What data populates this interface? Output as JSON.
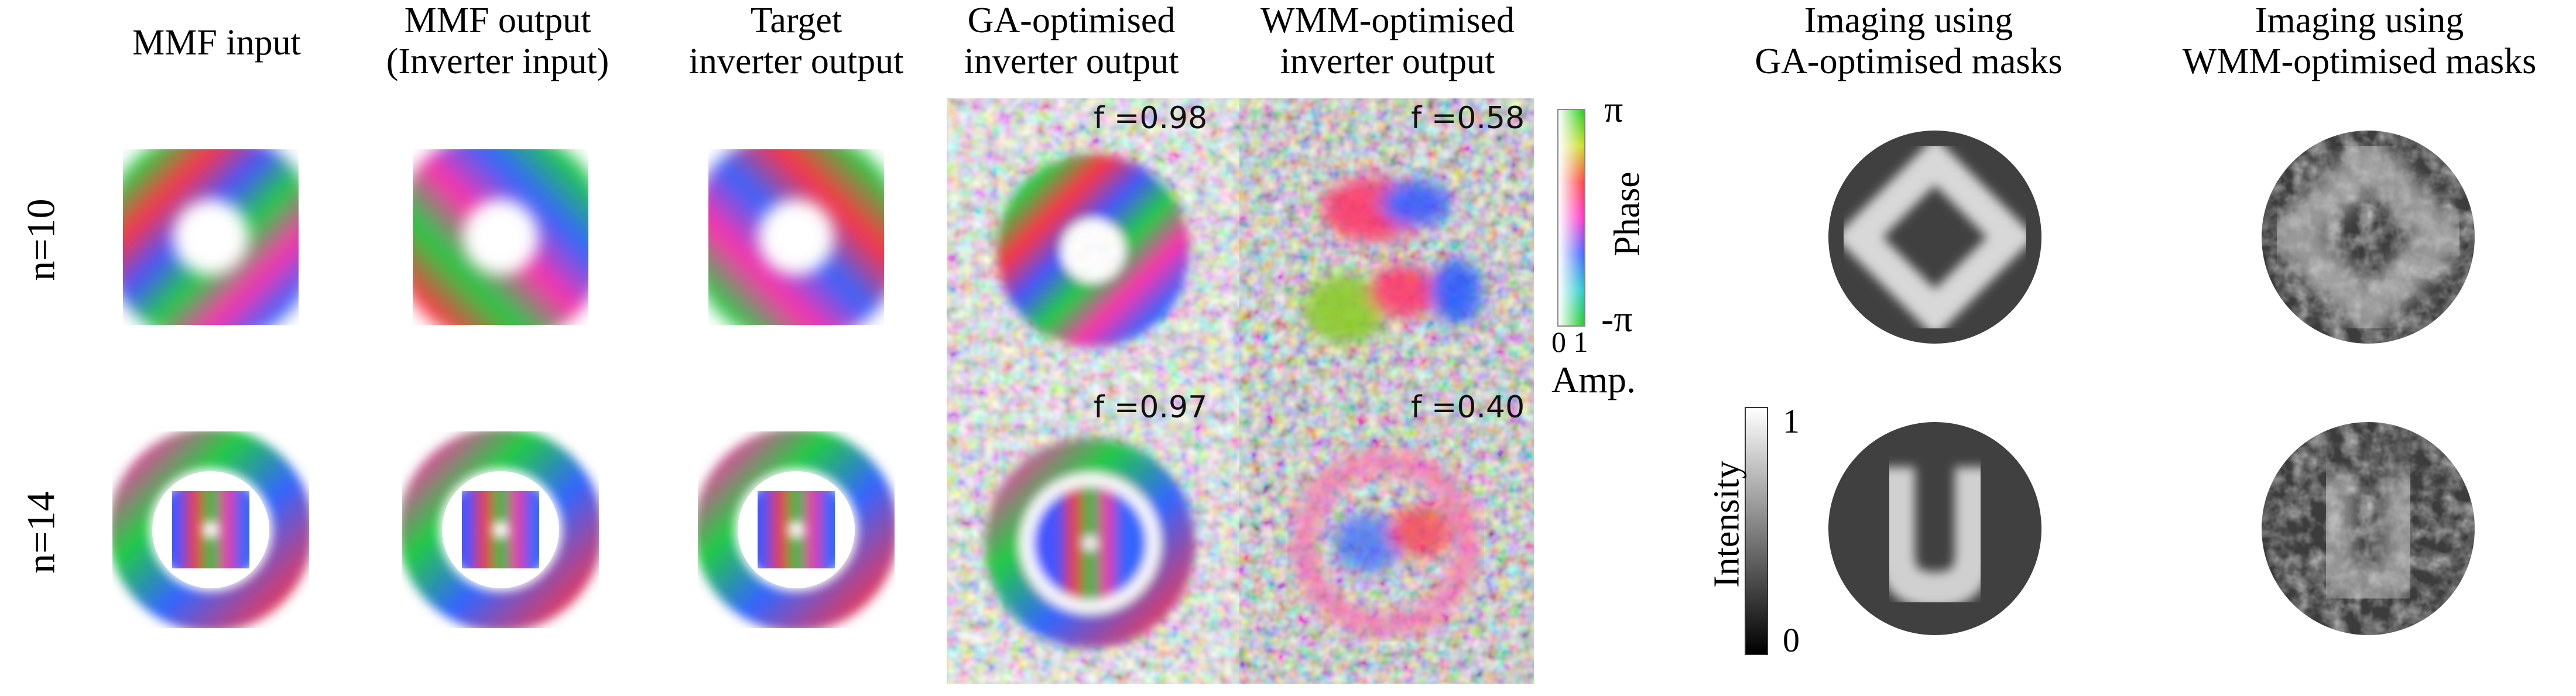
{
  "headers": {
    "mmf_input": [
      "MMF input"
    ],
    "mmf_output": [
      "MMF output",
      "(Inverter input)"
    ],
    "target": [
      "Target",
      "inverter output"
    ],
    "ga_output": [
      "GA-optimised",
      "inverter output"
    ],
    "wmm_output": [
      "WMM-optimised",
      "inverter output"
    ],
    "ga_imaging": [
      "Imaging using",
      "GA-optimised masks"
    ],
    "wmm_imaging": [
      "Imaging using",
      "WMM-optimised masks"
    ]
  },
  "rows": [
    "n=10",
    "n=14"
  ],
  "fidelities": {
    "ga_n10": "f =0.98",
    "wmm_n10": "f =0.58",
    "ga_n14": "f =0.97",
    "wmm_n14": "f =0.40"
  },
  "phase_colorbar": {
    "label": "Phase",
    "top": "π",
    "bottom": "-π",
    "amp_ticks": "0 1",
    "amp_label": "Amp.",
    "colors": [
      "#22cc22",
      "#ccdd22",
      "#ff4444",
      "#ff33cc",
      "#4466ff",
      "#22cccc",
      "#22cc22"
    ]
  },
  "intensity_colorbar": {
    "label": "Intensity",
    "max": "1",
    "min": "0"
  }
}
